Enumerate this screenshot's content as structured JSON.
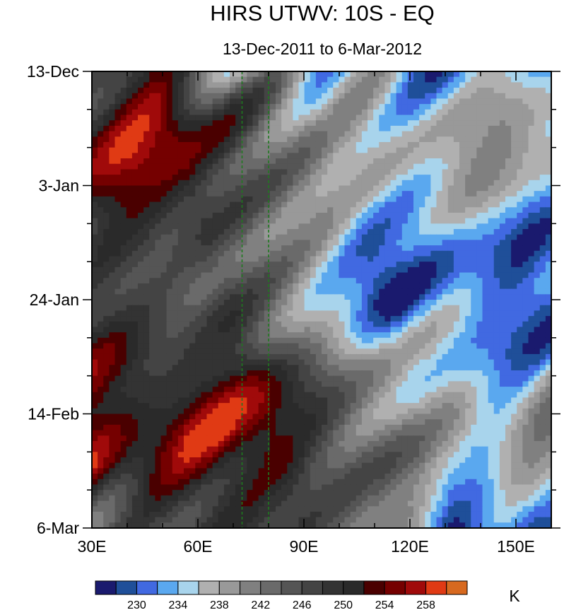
{
  "chart_data": {
    "type": "heatmap",
    "title": "HIRS UTWV: 10S - EQ",
    "subtitle": "13-Dec-2011 to 6-Mar-2012",
    "x_axis": {
      "range": [
        30,
        160
      ],
      "ticks": [
        30,
        60,
        90,
        120,
        150
      ],
      "tick_labels": [
        "30E",
        "60E",
        "90E",
        "120E",
        "150E"
      ]
    },
    "y_axis": {
      "range": [
        "2011-12-13",
        "2012-03-06"
      ],
      "ticks": [
        "2011-12-13",
        "2012-01-03",
        "2012-01-24",
        "2012-02-14",
        "2012-03-06"
      ],
      "tick_labels": [
        "13-Dec",
        "3-Jan",
        "24-Jan",
        "14-Feb",
        "6-Mar"
      ],
      "inverted": true
    },
    "reference_lines": [
      {
        "lon": 72.5,
        "style": "dashed",
        "color": "#1f7a1f"
      },
      {
        "lon": 80,
        "style": "dashed",
        "color": "#1f7a1f"
      }
    ],
    "colorbar": {
      "unit": "K",
      "levels": [
        228,
        230,
        232,
        234,
        236,
        238,
        240,
        242,
        244,
        246,
        248,
        250,
        252,
        254,
        256,
        258
      ],
      "label_values": [
        "230",
        "234",
        "238",
        "242",
        "246",
        "250",
        "254",
        "258"
      ],
      "colors": [
        "#1a1a6e",
        "#1f4f99",
        "#4169e1",
        "#5aa8ef",
        "#a8d4ec",
        "#b0b0b0",
        "#999999",
        "#808080",
        "#6a6a6a",
        "#555555",
        "#444444",
        "#333333",
        "#2a2a2a",
        "#4a0000",
        "#750000",
        "#a00a0a",
        "#e03a14",
        "#d7691f"
      ]
    }
  }
}
